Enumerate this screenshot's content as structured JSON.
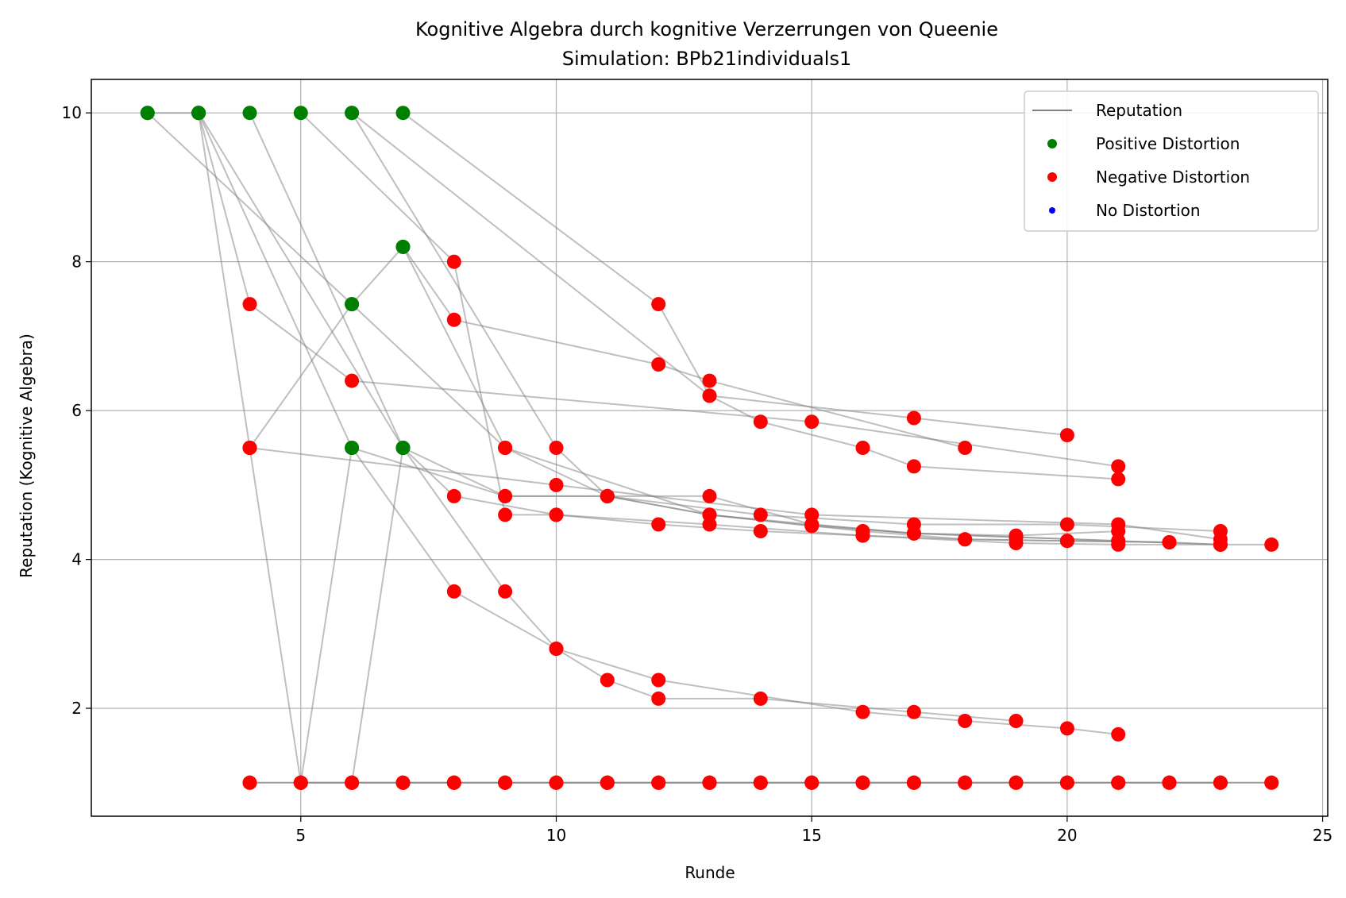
{
  "chart_data": {
    "type": "scatter",
    "title": "Kognitive Algebra durch kognitive Verzerrungen von Queenie",
    "subtitle": "Simulation: BPb21individuals1",
    "xlabel": "Runde",
    "ylabel": "Reputation (Kognitive Algebra)",
    "xlim": [
      0.9,
      25.1
    ],
    "ylim": [
      0.55,
      10.45
    ],
    "xticks": [
      5,
      10,
      15,
      20,
      25
    ],
    "yticks": [
      2,
      4,
      6,
      8,
      10
    ],
    "grid": true,
    "legend_position": "upper right",
    "legend": [
      {
        "label": "Reputation",
        "kind": "line",
        "color": "#808080"
      },
      {
        "label": "Positive Distortion",
        "kind": "marker",
        "color": "#008000"
      },
      {
        "label": "Negative Distortion",
        "kind": "marker",
        "color": "#ff0000"
      },
      {
        "label": "No Distortion",
        "kind": "marker",
        "color": "#0000ff"
      }
    ],
    "colors": {
      "positive": "#008000",
      "negative": "#ff0000",
      "none": "#0000ff",
      "line": "#808080"
    },
    "series": [
      {
        "points": [
          [
            2,
            10
          ],
          [
            3,
            10
          ],
          [
            4,
            5.5
          ],
          [
            5,
            1
          ],
          [
            6,
            1
          ],
          [
            7,
            1
          ],
          [
            8,
            1
          ],
          [
            9,
            1
          ],
          [
            10,
            1
          ],
          [
            11,
            1
          ],
          [
            12,
            1
          ],
          [
            13,
            1
          ],
          [
            14,
            1
          ],
          [
            15,
            1
          ],
          [
            16,
            1
          ],
          [
            17,
            1
          ],
          [
            18,
            1
          ],
          [
            19,
            1
          ],
          [
            20,
            1
          ],
          [
            21,
            1
          ],
          [
            22,
            1
          ],
          [
            23,
            1
          ],
          [
            24,
            1
          ]
        ],
        "distortion": [
          "positive",
          "positive",
          "negative",
          "negative",
          "negative",
          "negative",
          "negative",
          "negative",
          "negative",
          "negative",
          "negative",
          "negative",
          "negative",
          "negative",
          "negative",
          "negative",
          "negative",
          "negative",
          "negative",
          "negative",
          "negative",
          "negative",
          "negative"
        ]
      },
      {
        "points": [
          [
            4,
            1
          ],
          [
            5,
            1
          ],
          [
            6,
            1
          ],
          [
            7,
            1
          ],
          [
            8,
            1
          ],
          [
            9,
            1
          ],
          [
            10,
            1
          ],
          [
            11,
            1
          ],
          [
            12,
            1
          ],
          [
            13,
            1
          ],
          [
            14,
            1
          ],
          [
            15,
            1
          ],
          [
            16,
            1
          ],
          [
            17,
            1
          ],
          [
            18,
            1
          ],
          [
            19,
            1
          ],
          [
            20,
            1
          ],
          [
            21,
            1
          ],
          [
            22,
            1
          ],
          [
            23,
            1
          ],
          [
            24,
            1
          ]
        ],
        "distortion": [
          "negative",
          "negative",
          "negative",
          "negative",
          "negative",
          "negative",
          "negative",
          "negative",
          "negative",
          "negative",
          "negative",
          "negative",
          "negative",
          "negative",
          "negative",
          "negative",
          "negative",
          "negative",
          "negative",
          "negative",
          "negative"
        ]
      },
      {
        "points": [
          [
            5,
            1
          ],
          [
            6,
            5.5
          ],
          [
            9,
            4.85
          ],
          [
            11,
            4.85
          ],
          [
            13,
            4.6
          ],
          [
            15,
            4.45
          ],
          [
            17,
            4.35
          ],
          [
            19,
            4.3
          ],
          [
            21,
            4.25
          ],
          [
            23,
            4.2
          ],
          [
            24,
            4.2
          ]
        ],
        "distortion": [
          "negative",
          "positive",
          "negative",
          "negative",
          "negative",
          "negative",
          "negative",
          "negative",
          "negative",
          "negative",
          "negative"
        ]
      },
      {
        "points": [
          [
            6,
            1
          ],
          [
            7,
            5.5
          ],
          [
            8,
            4.85
          ],
          [
            10,
            4.6
          ],
          [
            12,
            4.47
          ],
          [
            14,
            4.38
          ],
          [
            16,
            4.32
          ],
          [
            18,
            4.27
          ],
          [
            20,
            4.25
          ],
          [
            22,
            4.23
          ]
        ],
        "distortion": [
          "negative",
          "positive",
          "negative",
          "negative",
          "negative",
          "negative",
          "negative",
          "negative",
          "negative",
          "negative"
        ]
      },
      {
        "points": [
          [
            4,
            5.5
          ],
          [
            6,
            7.43
          ],
          [
            7,
            8.2
          ],
          [
            9,
            5.5
          ],
          [
            11,
            4.85
          ],
          [
            13,
            4.85
          ],
          [
            15,
            4.47
          ],
          [
            17,
            4.35
          ],
          [
            19,
            4.3
          ],
          [
            21,
            4.25
          ]
        ],
        "distortion": [
          "negative",
          "positive",
          "positive",
          "negative",
          "negative",
          "negative",
          "negative",
          "negative",
          "negative",
          "negative"
        ]
      },
      {
        "points": [
          [
            3,
            10
          ],
          [
            4,
            7.43
          ],
          [
            6,
            6.4
          ],
          [
            15,
            5.85
          ],
          [
            21,
            5.25
          ]
        ],
        "distortion": [
          "positive",
          "negative",
          "negative",
          "negative",
          "negative"
        ]
      },
      {
        "points": [
          [
            2,
            10
          ],
          [
            6,
            7.43
          ],
          [
            9,
            5.5
          ],
          [
            13,
            4.6
          ],
          [
            16,
            4.38
          ],
          [
            18,
            4.27
          ],
          [
            20,
            4.25
          ],
          [
            22,
            4.23
          ],
          [
            23,
            4.2
          ]
        ],
        "distortion": [
          "positive",
          "positive",
          "negative",
          "negative",
          "negative",
          "negative",
          "negative",
          "negative",
          "negative"
        ]
      },
      {
        "points": [
          [
            3,
            10
          ],
          [
            6,
            5.5
          ],
          [
            8,
            3.57
          ],
          [
            10,
            2.8
          ],
          [
            12,
            2.38
          ],
          [
            16,
            1.95
          ],
          [
            18,
            1.83
          ],
          [
            20,
            1.73
          ],
          [
            21,
            1.65
          ]
        ],
        "distortion": [
          "positive",
          "positive",
          "negative",
          "negative",
          "negative",
          "negative",
          "negative",
          "negative",
          "negative"
        ]
      },
      {
        "points": [
          [
            3,
            10
          ],
          [
            7,
            5.5
          ],
          [
            9,
            3.57
          ],
          [
            10,
            2.8
          ],
          [
            11,
            2.38
          ],
          [
            12,
            2.13
          ],
          [
            14,
            2.13
          ],
          [
            17,
            1.95
          ],
          [
            19,
            1.83
          ]
        ],
        "distortion": [
          "positive",
          "positive",
          "negative",
          "negative",
          "negative",
          "negative",
          "negative",
          "negative",
          "negative"
        ]
      },
      {
        "points": [
          [
            4,
            10
          ],
          [
            7,
            5.5
          ],
          [
            9,
            4.85
          ],
          [
            11,
            4.85
          ],
          [
            14,
            4.6
          ],
          [
            17,
            4.47
          ],
          [
            20,
            4.47
          ],
          [
            23,
            4.38
          ]
        ],
        "distortion": [
          "positive",
          "positive",
          "negative",
          "negative",
          "negative",
          "negative",
          "negative",
          "negative"
        ]
      },
      {
        "points": [
          [
            6,
            10
          ],
          [
            10,
            5.5
          ],
          [
            11,
            4.85
          ],
          [
            13,
            4.6
          ],
          [
            15,
            4.47
          ],
          [
            17,
            4.35
          ],
          [
            19,
            4.32
          ],
          [
            21,
            4.38
          ]
        ],
        "distortion": [
          "positive",
          "negative",
          "negative",
          "negative",
          "negative",
          "negative",
          "negative",
          "negative"
        ]
      },
      {
        "points": [
          [
            7,
            10
          ],
          [
            12,
            7.43
          ],
          [
            13,
            6.2
          ],
          [
            14,
            5.85
          ],
          [
            16,
            5.5
          ],
          [
            17,
            5.25
          ],
          [
            21,
            5.08
          ]
        ],
        "distortion": [
          "positive",
          "negative",
          "negative",
          "negative",
          "negative",
          "negative",
          "negative"
        ]
      },
      {
        "points": [
          [
            7,
            8.2
          ],
          [
            8,
            7.22
          ],
          [
            12,
            6.62
          ],
          [
            13,
            6.4
          ],
          [
            18,
            5.5
          ]
        ],
        "distortion": [
          "positive",
          "negative",
          "negative",
          "negative",
          "negative"
        ]
      },
      {
        "points": [
          [
            6,
            10
          ],
          [
            13,
            6.2
          ],
          [
            17,
            5.9
          ],
          [
            20,
            5.67
          ]
        ],
        "distortion": [
          "positive",
          "negative",
          "negative",
          "negative"
        ]
      },
      {
        "points": [
          [
            4,
            5.5
          ],
          [
            10,
            5.0
          ],
          [
            15,
            4.6
          ],
          [
            21,
            4.47
          ],
          [
            23,
            4.27
          ]
        ],
        "distortion": [
          "negative",
          "negative",
          "negative",
          "negative",
          "negative"
        ]
      },
      {
        "points": [
          [
            4,
            1
          ],
          [
            5,
            1
          ],
          [
            6,
            1
          ],
          [
            7,
            1
          ],
          [
            8,
            1
          ],
          [
            9,
            1
          ],
          [
            10,
            1
          ],
          [
            11,
            1
          ],
          [
            12,
            1
          ],
          [
            13,
            1
          ],
          [
            14,
            1
          ],
          [
            15,
            1
          ],
          [
            16,
            1
          ],
          [
            17,
            1
          ],
          [
            18,
            1
          ],
          [
            19,
            1
          ],
          [
            20,
            1
          ],
          [
            21,
            1
          ],
          [
            22,
            1
          ],
          [
            23,
            1
          ]
        ],
        "distortion": [
          "negative",
          "negative",
          "negative",
          "negative",
          "negative",
          "negative",
          "negative",
          "negative",
          "negative",
          "negative",
          "negative",
          "negative",
          "negative",
          "negative",
          "negative",
          "negative",
          "negative",
          "negative",
          "negative",
          "negative"
        ]
      },
      {
        "points": [
          [
            5,
            10
          ],
          [
            8,
            8.0
          ],
          [
            9,
            4.6
          ],
          [
            10,
            4.6
          ],
          [
            13,
            4.47
          ],
          [
            16,
            4.32
          ],
          [
            19,
            4.22
          ],
          [
            21,
            4.2
          ],
          [
            23,
            4.2
          ]
        ],
        "distortion": [
          "positive",
          "negative",
          "negative",
          "negative",
          "negative",
          "negative",
          "negative",
          "negative",
          "negative"
        ]
      }
    ]
  }
}
